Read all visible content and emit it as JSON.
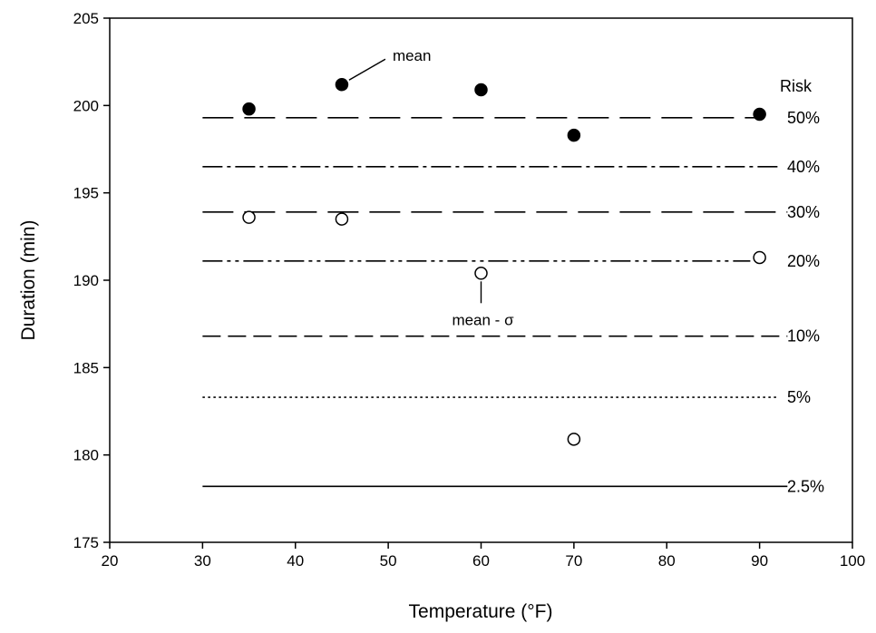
{
  "chart_data": {
    "type": "scatter",
    "xlabel": "Temperature (°F)",
    "ylabel": "Duration (min)",
    "xlim": [
      20,
      100
    ],
    "ylim": [
      175,
      205
    ],
    "x_ticks": [
      "20",
      "30",
      "40",
      "50",
      "60",
      "70",
      "80",
      "90",
      "100"
    ],
    "y_ticks": [
      "175",
      "180",
      "185",
      "190",
      "195",
      "200",
      "205"
    ],
    "grid": false,
    "series": [
      {
        "marker": "filled-circle",
        "points": [
          {
            "x": 35,
            "y": 199.8
          },
          {
            "x": 45,
            "y": 201.2
          },
          {
            "x": 60,
            "y": 200.9
          },
          {
            "x": 70,
            "y": 198.3
          },
          {
            "x": 90,
            "y": 199.5
          }
        ]
      },
      {
        "marker": "open-circle",
        "points": [
          {
            "x": 35,
            "y": 193.6
          },
          {
            "x": 45,
            "y": 193.5
          },
          {
            "x": 60,
            "y": 190.4
          },
          {
            "x": 70,
            "y": 180.9
          },
          {
            "x": 90,
            "y": 191.3
          }
        ]
      }
    ],
    "risk_header": "Risk",
    "risk_lines": [
      {
        "label": "50%",
        "y": 199.3,
        "x_start": 30,
        "x_end": 90,
        "dash": "long-dash"
      },
      {
        "label": "40%",
        "y": 196.5,
        "x_start": 30,
        "x_end": 92,
        "dash": "dash-dot"
      },
      {
        "label": "30%",
        "y": 193.9,
        "x_start": 30,
        "x_end": 93,
        "dash": "long-dash"
      },
      {
        "label": "20%",
        "y": 191.1,
        "x_start": 30,
        "x_end": 89,
        "dash": "dash-dot-dot"
      },
      {
        "label": "10%",
        "y": 186.8,
        "x_start": 30,
        "x_end": 93,
        "dash": "medium-dash"
      },
      {
        "label": "5%",
        "y": 183.3,
        "x_start": 30,
        "x_end": 92,
        "dash": "dotted"
      },
      {
        "label": "2.5%",
        "y": 178.2,
        "x_start": 30,
        "x_end": 93,
        "dash": "solid"
      }
    ],
    "annotations": [
      {
        "text": "mean",
        "x": 45,
        "y": 201.2
      },
      {
        "text": "mean - σ",
        "x": 60,
        "y": 190.4
      }
    ]
  }
}
